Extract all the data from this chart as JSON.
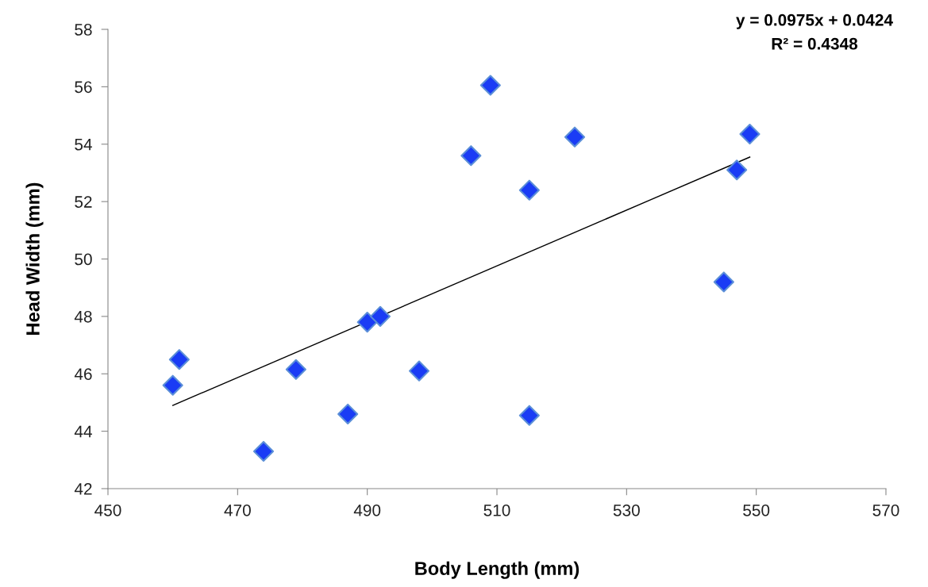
{
  "chart_data": {
    "type": "scatter",
    "xlabel": "Body Length (mm)",
    "ylabel": "Head Width (mm)",
    "xlim": [
      450,
      570
    ],
    "xticks": [
      450,
      470,
      490,
      510,
      530,
      550,
      570
    ],
    "ylim": [
      42,
      58
    ],
    "yticks": [
      42,
      44,
      46,
      48,
      50,
      52,
      54,
      56,
      58
    ],
    "grid": false,
    "marker": "diamond",
    "series": [
      {
        "color": "#1a3cf5",
        "x": [
          460,
          461,
          474,
          479,
          487,
          490,
          492,
          498,
          506,
          509,
          515,
          515,
          522,
          545,
          547,
          549
        ],
        "values": [
          45.6,
          46.5,
          43.3,
          46.15,
          44.6,
          47.8,
          48.0,
          46.1,
          53.6,
          56.05,
          52.4,
          44.55,
          54.25,
          49.2,
          53.1,
          54.35
        ]
      },
      {
        "type": "line",
        "color": "#000000",
        "marker": "none",
        "line_style": "solid",
        "x": [
          460,
          549
        ],
        "values": [
          44.9,
          53.55
        ]
      }
    ],
    "annotations": [
      "y = 0.0975x + 0.0424",
      "R² = 0.4348"
    ]
  }
}
